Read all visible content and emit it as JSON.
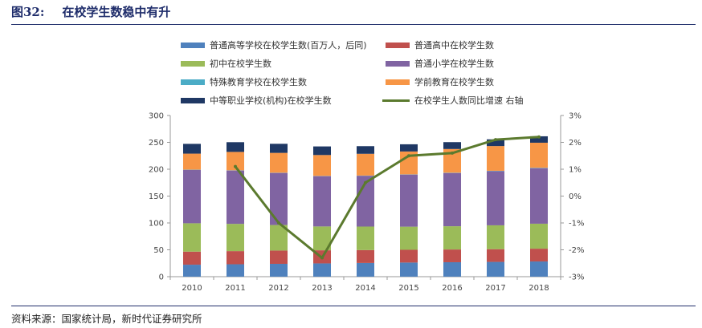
{
  "header": {
    "figure_no": "图32:",
    "title": "在校学生数稳中有升"
  },
  "footer": {
    "source": "资料来源：国家统计局，新时代证券研究所"
  },
  "chart_data": {
    "type": "bar",
    "stacked": true,
    "title": "在校学生数稳中有升",
    "categories": [
      "2010",
      "2011",
      "2012",
      "2013",
      "2014",
      "2015",
      "2016",
      "2017",
      "2018"
    ],
    "y_left": {
      "min": 0,
      "max": 300,
      "step": 50,
      "ticks": [
        "0",
        "50",
        "100",
        "150",
        "200",
        "250",
        "300"
      ]
    },
    "y_right": {
      "min": -3,
      "max": 3,
      "step": 1,
      "ticks": [
        "-3%",
        "-2%",
        "-1%",
        "0%",
        "1%",
        "2%",
        "3%"
      ]
    },
    "series": [
      {
        "name": "普通高等学校在校学生数(百万人，后同)",
        "color": "#4f81bd",
        "type": "bar",
        "values": [
          22.3,
          23.1,
          23.9,
          24.7,
          25.5,
          26.3,
          26.9,
          27.5,
          28.3
        ]
      },
      {
        "name": "普通高中在校学生数",
        "color": "#c0504d",
        "type": "bar",
        "values": [
          24.3,
          24.5,
          24.7,
          24.4,
          24.0,
          23.7,
          23.7,
          23.7,
          23.8
        ]
      },
      {
        "name": "初中在校学生数",
        "color": "#9bbb59",
        "type": "bar",
        "values": [
          52.8,
          50.7,
          47.6,
          44.4,
          43.8,
          43.1,
          43.3,
          44.4,
          46.5
        ]
      },
      {
        "name": "普通小学在校学生数",
        "color": "#8064a2",
        "type": "bar",
        "values": [
          99.4,
          99.3,
          96.9,
          93.6,
          94.5,
          96.9,
          99.1,
          100.9,
          103.4
        ]
      },
      {
        "name": "特殊教育学校在校学生数",
        "color": "#4bacc6",
        "type": "bar",
        "values": [
          0.4,
          0.4,
          0.4,
          0.4,
          0.4,
          0.4,
          0.5,
          0.6,
          0.7
        ]
      },
      {
        "name": "学前教育在校学生数",
        "color": "#f79646",
        "type": "bar",
        "values": [
          29.8,
          34.2,
          36.9,
          38.9,
          40.5,
          42.6,
          44.1,
          46.0,
          46.6
        ]
      },
      {
        "name": "中等职业学校(机构)在校学生数",
        "color": "#1f3864",
        "type": "bar",
        "values": [
          18.2,
          18.1,
          16.9,
          16.0,
          14.2,
          13.4,
          12.8,
          12.5,
          12.0
        ]
      },
      {
        "name": "在校学生人数同比增速 右轴",
        "color": "#5b7a2e",
        "type": "line",
        "axis": "right",
        "values": [
          null,
          1.1,
          -1.0,
          -2.3,
          0.5,
          1.5,
          1.6,
          2.1,
          2.2
        ]
      }
    ]
  }
}
